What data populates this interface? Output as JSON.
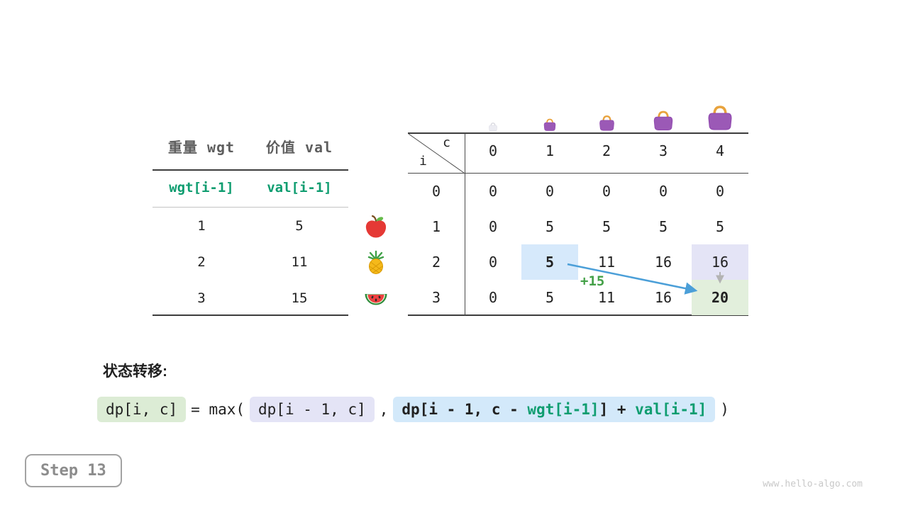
{
  "left_table": {
    "headers": [
      "重量 wgt",
      "价值 val"
    ],
    "var_row": [
      "wgt[i-1]",
      "val[i-1]"
    ],
    "rows": [
      [
        "1",
        "5"
      ],
      [
        "2",
        "11"
      ],
      [
        "3",
        "15"
      ]
    ]
  },
  "dp_table": {
    "corner_row_var": "i",
    "corner_col_var": "c",
    "col_headers": [
      "0",
      "1",
      "2",
      "3",
      "4"
    ],
    "rows": [
      {
        "label": "0",
        "values": [
          "0",
          "0",
          "0",
          "0",
          "0"
        ]
      },
      {
        "label": "1",
        "values": [
          "0",
          "5",
          "5",
          "5",
          "5"
        ]
      },
      {
        "label": "2",
        "values": [
          "0",
          "5",
          "11",
          "16",
          "16"
        ]
      },
      {
        "label": "3",
        "values": [
          "0",
          "5",
          "11",
          "16",
          "20"
        ]
      }
    ],
    "highlights": [
      {
        "row": 2,
        "col": 1,
        "type": "blue",
        "bold": true
      },
      {
        "row": 2,
        "col": 4,
        "type": "lavender",
        "bold": false
      },
      {
        "row": 3,
        "col": 4,
        "type": "green",
        "bold": true
      }
    ],
    "annotation": "+15",
    "row_icons": [
      "apple-icon",
      "pineapple-icon",
      "watermelon-icon"
    ],
    "bags": {
      "icon": "handbag-icon",
      "count": 5,
      "sizes": [
        14,
        20,
        25,
        32,
        40
      ],
      "first_faint": true
    }
  },
  "formula": {
    "label": "状态转移:",
    "lhs": "dp[i, c]",
    "equals_max": "= max(",
    "option1": "dp[i - 1, c]",
    "comma": ",",
    "option2_part1": "dp[i - 1, c - ",
    "option2_wgt": "wgt[i-1]",
    "option2_part2": "] + ",
    "option2_val": "val[i-1]",
    "close_paren": ")"
  },
  "step_badge": {
    "label": "Step 13"
  },
  "watermark": "www.hello-algo.com",
  "colors": {
    "accent_green": "#0f9d70",
    "annotation_green": "#43a047",
    "arrow_blue": "#4b9fd8",
    "cell_blue": "#d6e9fb",
    "cell_lavender": "#e4e4f6",
    "cell_green": "#e2efdc",
    "formula_green_bg": "#dcecd5",
    "formula_lavender_bg": "#e4e4f6",
    "formula_blue_bg": "#d3e9fa"
  }
}
